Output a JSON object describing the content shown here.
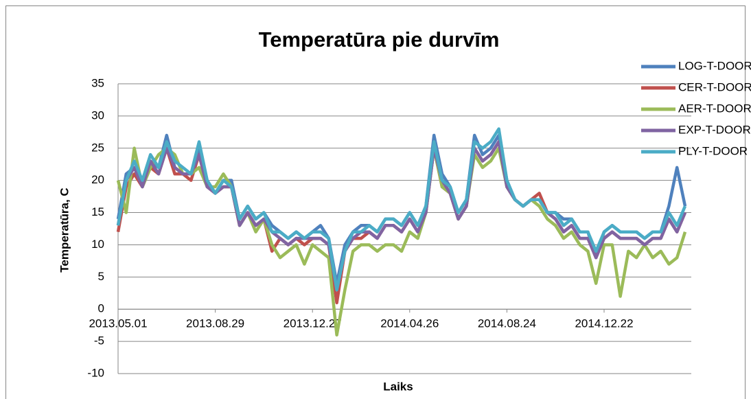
{
  "chart_data": {
    "type": "line",
    "title": "Temperatūra  pie durvīm",
    "x_label": "Laiks",
    "y_label": "Temperatūra, C",
    "categories": [
      "2013.05.01",
      null,
      null,
      null,
      null,
      null,
      null,
      null,
      null,
      null,
      null,
      null,
      "2013.08.29",
      null,
      null,
      null,
      null,
      null,
      null,
      null,
      null,
      null,
      null,
      null,
      "2013.12.27",
      null,
      null,
      null,
      null,
      null,
      null,
      null,
      null,
      null,
      null,
      null,
      "2014.04.26",
      null,
      null,
      null,
      null,
      null,
      null,
      null,
      null,
      null,
      null,
      null,
      "2014.08.24",
      null,
      null,
      null,
      null,
      null,
      null,
      null,
      null,
      null,
      null,
      null,
      "2014.12.22",
      null,
      null,
      null,
      null,
      null,
      null,
      null,
      null,
      null,
      null
    ],
    "ylim": [
      -10,
      35
    ],
    "yticks": [
      -10,
      -5,
      0,
      5,
      10,
      15,
      20,
      25,
      30,
      35
    ],
    "grid": true,
    "legend": "right",
    "series": [
      {
        "name": "LOG-T-DOOR (degC)",
        "color": "#4f81bd",
        "values": [
          14,
          21,
          22,
          20,
          23,
          22,
          27,
          22,
          21,
          21,
          25,
          20,
          18,
          20,
          20,
          14,
          16,
          14,
          15,
          13,
          12,
          11,
          12,
          11,
          12,
          13,
          11,
          4,
          10,
          12,
          13,
          13,
          12,
          14,
          14,
          13,
          15,
          13,
          16,
          27,
          21,
          19,
          15,
          17,
          27,
          24,
          25,
          27,
          20,
          17,
          16,
          17,
          17,
          15,
          15,
          14,
          14,
          12,
          12,
          8,
          12,
          13,
          12,
          12,
          12,
          11,
          12,
          12,
          16,
          22,
          16
        ]
      },
      {
        "name": "CER-T-DOOR (degC)",
        "color": "#c0504d",
        "values": [
          12,
          19,
          21,
          19,
          22,
          21,
          25,
          21,
          21,
          20,
          24,
          19,
          18,
          19,
          19,
          13,
          15,
          13,
          14,
          9,
          11,
          10,
          11,
          10,
          11,
          11,
          10,
          1,
          9,
          11,
          11,
          12,
          11,
          13,
          13,
          12,
          14,
          12,
          15,
          25,
          19,
          18,
          14,
          16,
          25,
          23,
          24,
          26,
          19,
          17,
          16,
          17,
          18,
          15,
          14,
          12,
          13,
          11,
          11,
          8,
          11,
          12,
          11,
          11,
          11,
          10,
          11,
          11,
          14,
          12,
          15
        ]
      },
      {
        "name": "AER-T-DOOR (degC)",
        "color": "#9bbb59",
        "values": [
          20,
          15,
          25,
          19,
          22,
          24,
          25,
          24,
          21,
          21,
          22,
          19,
          19,
          21,
          19,
          13,
          15,
          12,
          14,
          10,
          8,
          9,
          10,
          7,
          10,
          9,
          8,
          -4,
          3,
          9,
          10,
          10,
          9,
          10,
          10,
          9,
          12,
          11,
          15,
          25,
          19,
          18,
          14,
          16,
          24,
          22,
          23,
          25,
          19,
          17,
          16,
          17,
          16,
          14,
          13,
          11,
          12,
          10,
          9,
          4,
          10,
          10,
          2,
          9,
          8,
          10,
          8,
          9,
          7,
          8,
          12
        ]
      },
      {
        "name": "EXP-T-DOOR (degC)",
        "color": "#8064a2",
        "values": [
          13,
          20,
          22,
          19,
          23,
          21,
          25,
          22,
          21,
          21,
          24,
          19,
          18,
          19,
          19,
          13,
          15,
          13,
          14,
          12,
          11,
          10,
          11,
          11,
          11,
          11,
          10,
          3,
          9,
          11,
          12,
          12,
          11,
          13,
          13,
          12,
          14,
          12,
          15,
          25,
          20,
          18,
          14,
          16,
          25,
          23,
          24,
          26,
          19,
          17,
          16,
          17,
          17,
          15,
          14,
          12,
          13,
          11,
          11,
          8,
          11,
          12,
          11,
          11,
          11,
          10,
          11,
          11,
          14,
          12,
          15
        ]
      },
      {
        "name": "PLY-T-DOOR (degC)",
        "color": "#4bacc6",
        "values": [
          13,
          20,
          23,
          20,
          24,
          22,
          26,
          23,
          22,
          21,
          26,
          20,
          18,
          20,
          19,
          14,
          16,
          14,
          15,
          12,
          12,
          11,
          12,
          11,
          12,
          12,
          11,
          3,
          9,
          12,
          12,
          13,
          12,
          14,
          14,
          13,
          15,
          13,
          16,
          26,
          20,
          19,
          15,
          17,
          26,
          25,
          26,
          28,
          20,
          17,
          16,
          17,
          17,
          15,
          15,
          13,
          14,
          12,
          12,
          9,
          12,
          13,
          12,
          12,
          12,
          11,
          12,
          12,
          15,
          13,
          16
        ]
      }
    ]
  }
}
